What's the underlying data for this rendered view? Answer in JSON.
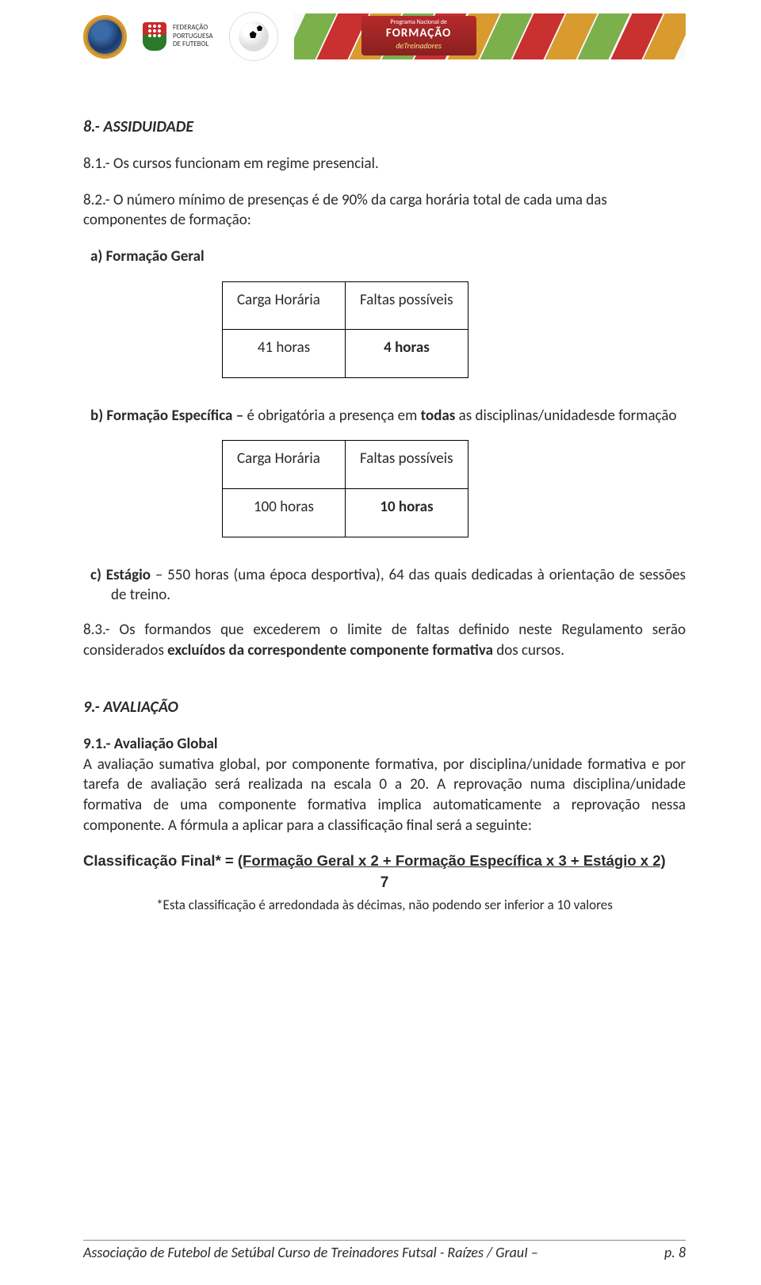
{
  "header": {
    "fpf_line1": "FEDERAÇÃO",
    "fpf_line2": "PORTUGUESA",
    "fpf_line3": "DE FUTEBOL",
    "banner_top": "Programa Nacional de",
    "banner_main": "FORMAÇÃO",
    "banner_sub": "deTreinadores",
    "stripe_colors": [
      "#7bb04a",
      "#c93030",
      "#d99a2e",
      "#7bb04a",
      "#c93030",
      "#d99a2e",
      "#7bb04a",
      "#c93030",
      "#d99a2e",
      "#7bb04a",
      "#c93030",
      "#d99a2e"
    ]
  },
  "s8": {
    "title": "8.- ASSIDUIDADE",
    "p1": "8.1.- Os cursos funcionam em regime presencial.",
    "p2": "8.2.- O número mínimo de presenças é de 90% da carga horária total de cada uma das componentes de formação:",
    "a_prefix": "a)",
    "a_text": "Formação Geral",
    "b_prefix": "b)",
    "b_text_1": "Formação Específica",
    "b_text_2": " é obrigatória a presença em ",
    "b_text_3": "todas",
    "b_text_4": " as disciplinas/unidadesde formação",
    "c_prefix": "c)",
    "c_text_1": "Estágio",
    "c_text_2": " – 550 horas (uma época desportiva), 64 das quais dedicadas à orientação de sessões de treino.",
    "p3_1": "8.3.- Os formandos que excederem o limite de faltas definido neste Regulamento serão considerados ",
    "p3_bold": "excluídos da correspondente componente formativa",
    "p3_2": " dos cursos."
  },
  "table_a": {
    "h1": "Carga Horária",
    "h2": "Faltas possíveis",
    "r1c1": "41 horas",
    "r1c2": "4 horas"
  },
  "table_b": {
    "h1": "Carga Horária",
    "h2": "Faltas possíveis",
    "r1c1": "100 horas",
    "r1c2": "10 horas"
  },
  "s9": {
    "title": "9.- AVALIAÇÃO",
    "sub": "9.1.- Avaliação Global",
    "body": "A avaliação sumativa global, por componente formativa, por disciplina/unidade formativa e por tarefa de avaliação será realizada na escala 0 a 20. A reprovação numa disciplina/unidade formativa de uma componente formativa implica automaticamente a reprovação nessa componente. A fórmula a aplicar para a classificação final será a seguinte:",
    "formula_label": "Classificação Final* = ",
    "formula_under": "(Formação Geral x 2 + Formação Específica x 3 + Estágio x 2)",
    "divisor": "7",
    "note": "*Esta classificação é arredondada às décimas, não podendo ser inferior a 10 valores"
  },
  "footer": {
    "left": "Associação de Futebol de Setúbal   Curso de Treinadores Futsal  - Raízes / GrauI –",
    "page": "p. 8"
  }
}
